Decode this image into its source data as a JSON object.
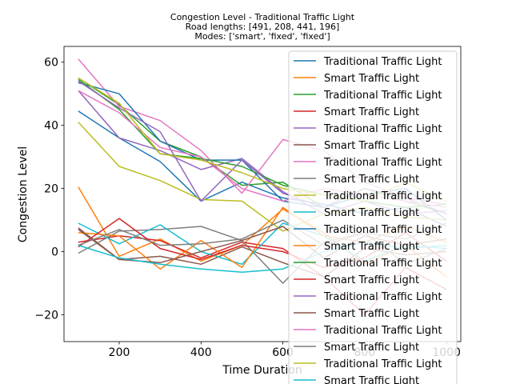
{
  "chart_data": {
    "type": "line",
    "title": "Congestion Level - Traditional Traffic Light",
    "subtitle_lines": [
      "Road lengths: [491, 208, 441, 196]",
      "Modes: ['smart', 'fixed', 'fixed']"
    ],
    "xlabel": "Time Duration",
    "ylabel": "Congestion Level",
    "xlim": [
      65,
      1035
    ],
    "ylim": [
      -28.5,
      65
    ],
    "xticks": [
      200,
      400,
      600,
      800,
      1000
    ],
    "yticks": [
      -20,
      0,
      20,
      40,
      60
    ],
    "xtick_labels": [
      "200",
      "400",
      "600",
      "800",
      "1000"
    ],
    "ytick_labels": [
      "−20",
      "0",
      "20",
      "40",
      "60"
    ],
    "grid": false,
    "legend_position": "top-right",
    "x": [
      100,
      200,
      300,
      400,
      500,
      600,
      700,
      800,
      900,
      1000
    ],
    "series": [
      {
        "name": "Traditional Traffic Light",
        "color": "#1f77b4",
        "values": [
          44.5,
          36,
          28.5,
          16,
          22,
          17,
          15,
          12,
          14,
          8
        ]
      },
      {
        "name": "Smart Traffic Light",
        "color": "#ff7f0e",
        "values": [
          20.5,
          -1.5,
          4,
          -3,
          2,
          13.5,
          6,
          -4,
          2,
          -8
        ]
      },
      {
        "name": "Traditional Traffic Light",
        "color": "#2ca02c",
        "values": [
          55,
          46.5,
          35,
          30,
          21,
          22,
          14,
          20,
          16,
          12
        ]
      },
      {
        "name": "Smart Traffic Light",
        "color": "#d62728",
        "values": [
          3,
          5,
          3.5,
          -2,
          3,
          1,
          -8,
          -20,
          -5,
          -12
        ]
      },
      {
        "name": "Traditional Traffic Light",
        "color": "#9467bd",
        "values": [
          51,
          36,
          32,
          26,
          29.5,
          19,
          12,
          16,
          12,
          13
        ]
      },
      {
        "name": "Smart Traffic Light",
        "color": "#8c564b",
        "values": [
          7.5,
          -2.5,
          -1.5,
          -4,
          1.5,
          -3.5,
          -8,
          1,
          -1,
          0
        ]
      },
      {
        "name": "Traditional Traffic Light",
        "color": "#e377c2",
        "values": [
          61,
          46,
          41.5,
          32,
          18.5,
          35.5,
          32,
          22,
          17,
          15
        ]
      },
      {
        "name": "Smart Traffic Light",
        "color": "#7f7f7f",
        "values": [
          -0.5,
          6.5,
          7,
          8,
          3.5,
          -10,
          3,
          6,
          -4,
          1
        ]
      },
      {
        "name": "Traditional Traffic Light",
        "color": "#bcbd22",
        "values": [
          41,
          27,
          22.5,
          16.5,
          16,
          6.5,
          12,
          14,
          11,
          10
        ]
      },
      {
        "name": "Smart Traffic Light",
        "color": "#17becf",
        "values": [
          9,
          2.5,
          8.5,
          0,
          -4,
          9,
          5,
          -3,
          2,
          1
        ]
      },
      {
        "name": "Traditional Traffic Light",
        "color": "#1f77b4",
        "values": [
          53.5,
          50,
          35,
          29,
          29,
          16,
          14,
          18,
          20,
          10
        ]
      },
      {
        "name": "Smart Traffic Light",
        "color": "#ff7f0e",
        "values": [
          6,
          5,
          -5.5,
          3.5,
          -5,
          14,
          5,
          3,
          8,
          3
        ]
      },
      {
        "name": "Traditional Traffic Light",
        "color": "#2ca02c",
        "values": [
          54.5,
          45,
          31,
          29.5,
          27,
          21,
          18,
          16,
          14,
          15
        ]
      },
      {
        "name": "Smart Traffic Light",
        "color": "#d62728",
        "values": [
          1.5,
          10.5,
          1,
          -2.5,
          2,
          0,
          -5,
          -2,
          6,
          -3
        ]
      },
      {
        "name": "Traditional Traffic Light",
        "color": "#9467bd",
        "values": [
          54,
          45.5,
          38,
          16,
          29,
          18.5,
          14,
          20,
          17,
          12
        ]
      },
      {
        "name": "Smart Traffic Light",
        "color": "#8c564b",
        "values": [
          7,
          -2.5,
          -3.5,
          0,
          3.5,
          8,
          -2,
          5,
          2,
          4
        ]
      },
      {
        "name": "Traditional Traffic Light",
        "color": "#e377c2",
        "values": [
          51,
          44,
          33,
          30,
          20,
          16,
          20,
          18,
          16,
          14
        ]
      },
      {
        "name": "Smart Traffic Light",
        "color": "#7f7f7f",
        "values": [
          2,
          7,
          2,
          2.5,
          4,
          10,
          2,
          6,
          4,
          9
        ]
      },
      {
        "name": "Traditional Traffic Light",
        "color": "#bcbd22",
        "values": [
          55,
          47,
          31,
          29,
          25,
          20,
          18,
          16,
          22,
          16
        ]
      },
      {
        "name": "Smart Traffic Light",
        "color": "#17becf",
        "values": [
          2,
          -2,
          -4,
          -5.5,
          -6.5,
          -5.5,
          0,
          3,
          1,
          2
        ]
      }
    ]
  }
}
